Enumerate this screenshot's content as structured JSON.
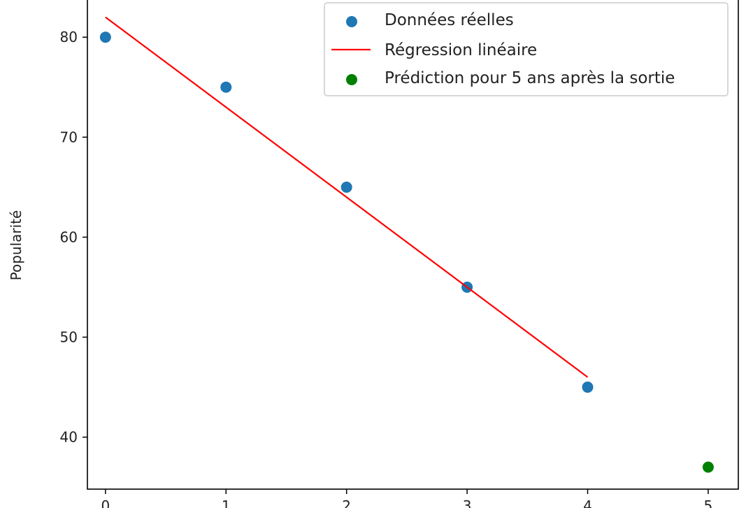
{
  "chart_data": {
    "type": "scatter",
    "title": "",
    "xlabel": "",
    "ylabel": "Popularité",
    "xlim": [
      -0.15,
      5.25
    ],
    "ylim": [
      34.8,
      84
    ],
    "xticks": [
      0,
      1,
      2,
      3,
      4,
      5
    ],
    "yticks": [
      40,
      50,
      60,
      70,
      80
    ],
    "grid": false,
    "legend_position": "upper right",
    "series": [
      {
        "name": "Données réelles",
        "kind": "scatter",
        "color": "#1f77b4",
        "x": [
          0,
          1,
          2,
          3,
          4
        ],
        "y": [
          80,
          75,
          65,
          55,
          45
        ]
      },
      {
        "name": "Régression linéaire",
        "kind": "line",
        "color": "#ff0000",
        "x": [
          0,
          4
        ],
        "y": [
          82,
          46
        ]
      },
      {
        "name": "Prédiction pour 5 ans après la sortie",
        "kind": "scatter",
        "color": "#008000",
        "x": [
          5
        ],
        "y": [
          37
        ]
      }
    ]
  }
}
